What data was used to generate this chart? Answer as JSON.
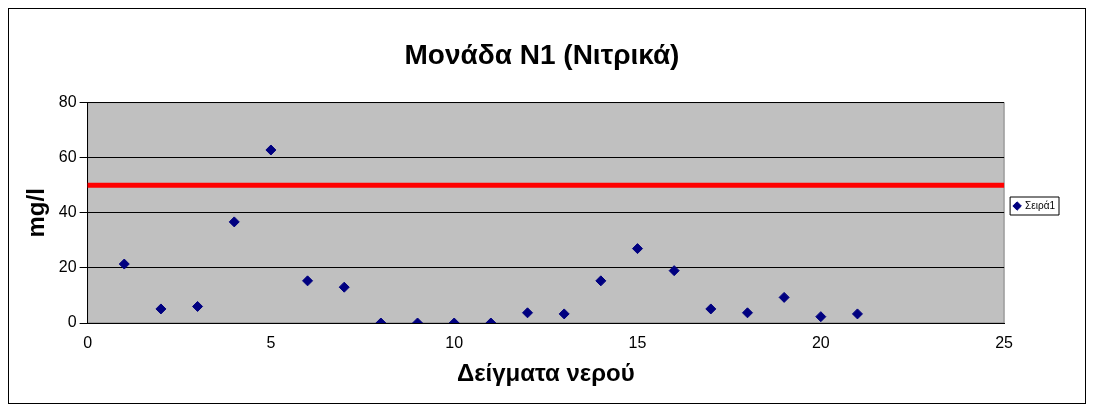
{
  "chart_data": {
    "type": "scatter",
    "title": "Μονάδα Ν1 (Νιτρικά)",
    "xlabel": "Δείγματα νερού",
    "ylabel": "mg/l",
    "x": [
      1,
      2,
      3,
      4,
      5,
      6,
      7,
      8,
      9,
      10,
      11,
      12,
      13,
      14,
      15,
      16,
      17,
      18,
      19,
      20,
      21
    ],
    "series": [
      {
        "name": "Σειρά1",
        "color": "#000080",
        "values": [
          21.4,
          5.1,
          6,
          36.7,
          62.8,
          15.3,
          13,
          0,
          0,
          0,
          0,
          3.7,
          3.3,
          15.3,
          27,
          19,
          5.1,
          3.7,
          9.3,
          2.3,
          3.3
        ]
      }
    ],
    "xlim": [
      0,
      25
    ],
    "xticks": [
      0,
      5,
      10,
      15,
      20,
      25
    ],
    "ylim": [
      0,
      80
    ],
    "yticks": [
      0,
      20,
      40,
      60,
      80
    ],
    "ref_lines": [
      {
        "axis": "y",
        "value": 50,
        "color": "#ff0000"
      }
    ],
    "grid": "y",
    "legend": "right",
    "marker": "diamond"
  }
}
